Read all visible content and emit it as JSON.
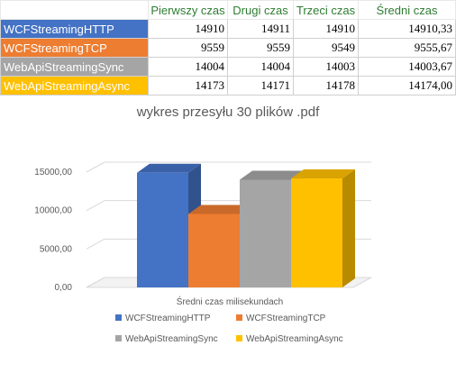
{
  "table": {
    "headers": [
      "",
      "Pierwszy czas",
      "Drugi czas",
      "Trzeci czas",
      "Średni czas"
    ],
    "rows": [
      {
        "label": "WCFStreamingHTTP",
        "color": "#4472c4",
        "values": [
          "14910",
          "14911",
          "14910",
          "14910,33"
        ]
      },
      {
        "label": "WCFStreamingTCP",
        "color": "#ed7d31",
        "values": [
          "9559",
          "9559",
          "9549",
          "9555,67"
        ]
      },
      {
        "label": "WebApiStreamingSync",
        "color": "#a5a5a5",
        "values": [
          "14004",
          "14004",
          "14003",
          "14003,67"
        ]
      },
      {
        "label": "WebApiStreamingAsync",
        "color": "#ffc000",
        "values": [
          "14173",
          "14171",
          "14178",
          "14174,00"
        ]
      }
    ]
  },
  "chart_data": {
    "type": "bar",
    "title": "wykres przesyłu 30 plików .pdf",
    "categories": [
      "Średni czas milisekundach"
    ],
    "series": [
      {
        "name": "WCFStreamingHTTP",
        "values": [
          14910.33
        ],
        "color": "#4472c4"
      },
      {
        "name": "WCFStreamingTCP",
        "values": [
          9555.67
        ],
        "color": "#ed7d31"
      },
      {
        "name": "WebApiStreamingSync",
        "values": [
          14003.67
        ],
        "color": "#a5a5a5"
      },
      {
        "name": "WebApiStreamingAsync",
        "values": [
          14174.0
        ],
        "color": "#ffc000"
      }
    ],
    "yticks": [
      "0,00",
      "5000,00",
      "10000,00",
      "15000,00"
    ],
    "ylim": [
      0,
      15000
    ],
    "grid": true,
    "legend": "bottom",
    "style": "3d-clustered-column"
  }
}
